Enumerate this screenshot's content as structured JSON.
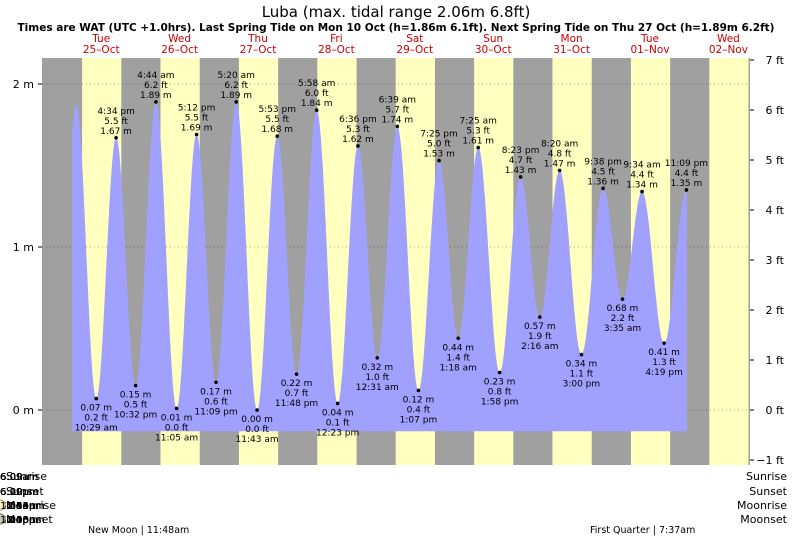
{
  "title": "Luba (max. tidal range 2.06m 6.8ft)",
  "subtitle": "Times are WAT (UTC +1.0hrs). Last Spring Tide on Mon 10 Oct (h=1.86m 6.1ft). Next Spring Tide on Thu 27 Oct (h=1.89m 6.2ft)",
  "days": [
    {
      "dow": "Tue",
      "date": "25–Oct"
    },
    {
      "dow": "Wed",
      "date": "26–Oct"
    },
    {
      "dow": "Thu",
      "date": "27–Oct"
    },
    {
      "dow": "Fri",
      "date": "28–Oct"
    },
    {
      "dow": "Sat",
      "date": "29–Oct"
    },
    {
      "dow": "Sun",
      "date": "30–Oct"
    },
    {
      "dow": "Mon",
      "date": "31–Oct"
    },
    {
      "dow": "Tue",
      "date": "01–Nov"
    },
    {
      "dow": "Wed",
      "date": "02–Nov"
    }
  ],
  "astro_labels": {
    "sunrise": "Sunrise",
    "sunset": "Sunset",
    "moonrise": "Moonrise",
    "moonset": "Moonset"
  },
  "sunrise": [
    "6:09am",
    "6:09am",
    "6:09am",
    "6:09am",
    "6:09am",
    "6:09am",
    "6:09am",
    "6:09am"
  ],
  "sunset": [
    "6:10pm",
    "6:10pm",
    "6:09pm",
    "6:09pm",
    "6:09pm",
    "6:09pm",
    "6:09pm",
    "6:09pm"
  ],
  "moonrise": [
    "6:03am",
    "6:54am",
    "7:49am",
    "8:48am",
    "9:51am",
    "10:54am",
    "11:55am",
    "12:53pm"
  ],
  "moonset": [
    "6:20pm",
    "7:10pm",
    "8:04pm",
    "9:03pm",
    "10:05pm",
    "11:08pm",
    "12:10am"
  ],
  "phases": [
    "New Moon | 11:48am",
    "First Quarter | 7:37am"
  ],
  "colors": {
    "day": "#ffffc0",
    "night": "#a0a0a0",
    "tide": "#a0a0ff",
    "date": "#cc0000",
    "sun_star": "#c8b43c",
    "sunset_star": "#e03c1e",
    "moon_rise": "#fff5c8",
    "moon_set": "#c8c8b4"
  },
  "chart_data": {
    "type": "area",
    "title": "Luba (max. tidal range 2.06m 6.8ft)",
    "ylim_m": [
      -0.3,
      2.06
    ],
    "y_ticks_m": [
      "0 m",
      "1 m",
      "2 m"
    ],
    "y_ticks_ft": [
      "−1 ft",
      "0 ft",
      "1 ft",
      "2 ft",
      "3 ft",
      "4 ft",
      "5 ft",
      "6 ft",
      "7 ft"
    ],
    "start_peak_m": 1.87,
    "series": [
      {
        "points": [
          {
            "day": "25-Oct",
            "time": "10:29 am",
            "h_m": 0.07,
            "l1": "0.07 m",
            "l2": "0.2 ft",
            "l3": "10:29 am",
            "kind": "low"
          },
          {
            "day": "25-Oct",
            "time": "4:34 pm",
            "h_m": 1.67,
            "l1": "4:34 pm",
            "l2": "5.5 ft",
            "l3": "1.67 m",
            "kind": "high"
          },
          {
            "day": "25-Oct",
            "time": "10:32 pm",
            "h_m": 0.15,
            "l1": "0.15 m",
            "l2": "0.5 ft",
            "l3": "10:32 pm",
            "kind": "low"
          },
          {
            "day": "26-Oct",
            "time": "4:44 am",
            "h_m": 1.89,
            "l1": "4:44 am",
            "l2": "6.2 ft",
            "l3": "1.89 m",
            "kind": "high"
          },
          {
            "day": "26-Oct",
            "time": "11:05 am",
            "h_m": 0.01,
            "l1": "0.01 m",
            "l2": "0.0 ft",
            "l3": "11:05 am",
            "kind": "low"
          },
          {
            "day": "26-Oct",
            "time": "5:12 pm",
            "h_m": 1.69,
            "l1": "5:12 pm",
            "l2": "5.5 ft",
            "l3": "1.69 m",
            "kind": "high"
          },
          {
            "day": "26-Oct",
            "time": "11:09 pm",
            "h_m": 0.17,
            "l1": "0.17 m",
            "l2": "0.6 ft",
            "l3": "11:09 pm",
            "kind": "low"
          },
          {
            "day": "27-Oct",
            "time": "5:20 am",
            "h_m": 1.89,
            "l1": "5:20 am",
            "l2": "6.2 ft",
            "l3": "1.89 m",
            "kind": "high"
          },
          {
            "day": "27-Oct",
            "time": "11:43 am",
            "h_m": 0.0,
            "l1": "0.00 m",
            "l2": "0.0 ft",
            "l3": "11:43 am",
            "kind": "low"
          },
          {
            "day": "27-Oct",
            "time": "5:53 pm",
            "h_m": 1.68,
            "l1": "5:53 pm",
            "l2": "5.5 ft",
            "l3": "1.68 m",
            "kind": "high"
          },
          {
            "day": "27-Oct",
            "time": "11:48 pm",
            "h_m": 0.22,
            "l1": "0.22 m",
            "l2": "0.7 ft",
            "l3": "11:48 pm",
            "kind": "low"
          },
          {
            "day": "28-Oct",
            "time": "5:58 am",
            "h_m": 1.84,
            "l1": "5:58 am",
            "l2": "6.0 ft",
            "l3": "1.84 m",
            "kind": "high"
          },
          {
            "day": "28-Oct",
            "time": "12:23 pm",
            "h_m": 0.04,
            "l1": "0.04 m",
            "l2": "0.1 ft",
            "l3": "12:23 pm",
            "kind": "low"
          },
          {
            "day": "28-Oct",
            "time": "6:36 pm",
            "h_m": 1.62,
            "l1": "6:36 pm",
            "l2": "5.3 ft",
            "l3": "1.62 m",
            "kind": "high"
          },
          {
            "day": "29-Oct",
            "time": "12:31 am",
            "h_m": 0.32,
            "l1": "0.32 m",
            "l2": "1.0 ft",
            "l3": "12:31 am",
            "kind": "low"
          },
          {
            "day": "29-Oct",
            "time": "6:39 am",
            "h_m": 1.74,
            "l1": "6:39 am",
            "l2": "5.7 ft",
            "l3": "1.74 m",
            "kind": "high"
          },
          {
            "day": "29-Oct",
            "time": "1:07 pm",
            "h_m": 0.12,
            "l1": "0.12 m",
            "l2": "0.4 ft",
            "l3": "1:07 pm",
            "kind": "low"
          },
          {
            "day": "29-Oct",
            "time": "7:25 pm",
            "h_m": 1.53,
            "l1": "7:25 pm",
            "l2": "5.0 ft",
            "l3": "1.53 m",
            "kind": "high"
          },
          {
            "day": "30-Oct",
            "time": "1:18 am",
            "h_m": 0.44,
            "l1": "0.44 m",
            "l2": "1.4 ft",
            "l3": "1:18 am",
            "kind": "low"
          },
          {
            "day": "30-Oct",
            "time": "7:25 am",
            "h_m": 1.61,
            "l1": "7:25 am",
            "l2": "5.3 ft",
            "l3": "1.61 m",
            "kind": "high"
          },
          {
            "day": "30-Oct",
            "time": "1:58 pm",
            "h_m": 0.23,
            "l1": "0.23 m",
            "l2": "0.8 ft",
            "l3": "1:58 pm",
            "kind": "low"
          },
          {
            "day": "30-Oct",
            "time": "8:23 pm",
            "h_m": 1.43,
            "l1": "8:23 pm",
            "l2": "4.7 ft",
            "l3": "1.43 m",
            "kind": "high"
          },
          {
            "day": "31-Oct",
            "time": "2:16 am",
            "h_m": 0.57,
            "l1": "0.57 m",
            "l2": "1.9 ft",
            "l3": "2:16 am",
            "kind": "low"
          },
          {
            "day": "31-Oct",
            "time": "8:20 am",
            "h_m": 1.47,
            "l1": "8:20 am",
            "l2": "4.8 ft",
            "l3": "1.47 m",
            "kind": "high"
          },
          {
            "day": "31-Oct",
            "time": "3:00 pm",
            "h_m": 0.34,
            "l1": "0.34 m",
            "l2": "1.1 ft",
            "l3": "3:00 pm",
            "kind": "low"
          },
          {
            "day": "31-Oct",
            "time": "9:38 pm",
            "h_m": 1.36,
            "l1": "9:38 pm",
            "l2": "4.5 ft",
            "l3": "1.36 m",
            "kind": "high"
          },
          {
            "day": "01-Nov",
            "time": "3:35 am",
            "h_m": 0.68,
            "l1": "0.68 m",
            "l2": "2.2 ft",
            "l3": "3:35 am",
            "kind": "low"
          },
          {
            "day": "01-Nov",
            "time": "9:34 am",
            "h_m": 1.34,
            "l1": "9:34 am",
            "l2": "4.4 ft",
            "l3": "1.34 m",
            "kind": "high"
          },
          {
            "day": "01-Nov",
            "time": "4:19 pm",
            "h_m": 0.41,
            "l1": "0.41 m",
            "l2": "1.3 ft",
            "l3": "4:19 pm",
            "kind": "low"
          },
          {
            "day": "01-Nov",
            "time": "11:09 pm",
            "h_m": 1.35,
            "l1": "11:09 pm",
            "l2": "4.4 ft",
            "l3": "1.35 m",
            "kind": "high"
          }
        ]
      }
    ]
  }
}
